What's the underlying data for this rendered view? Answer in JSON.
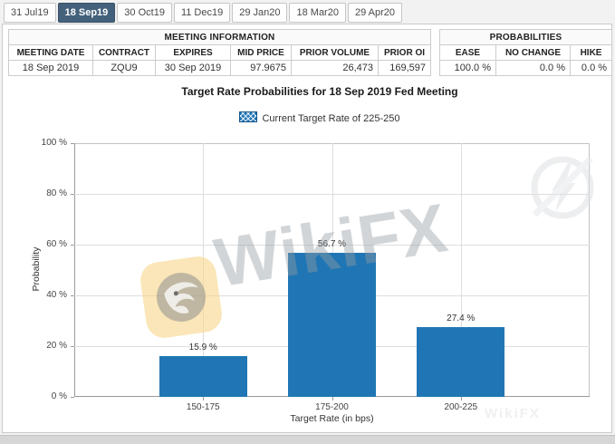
{
  "tabs": [
    {
      "label": "31 Jul19",
      "selected": false
    },
    {
      "label": "18 Sep19",
      "selected": true
    },
    {
      "label": "30 Oct19",
      "selected": false
    },
    {
      "label": "11 Dec19",
      "selected": false
    },
    {
      "label": "29 Jan20",
      "selected": false
    },
    {
      "label": "18 Mar20",
      "selected": false
    },
    {
      "label": "29 Apr20",
      "selected": false
    }
  ],
  "meeting_information": {
    "title": "MEETING INFORMATION",
    "columns": [
      "MEETING DATE",
      "CONTRACT",
      "EXPIRES",
      "MID PRICE",
      "PRIOR VOLUME",
      "PRIOR OI"
    ],
    "values": [
      "18 Sep 2019",
      "ZQU9",
      "30 Sep 2019",
      "97.9675",
      "26,473",
      "169,597"
    ]
  },
  "probabilities": {
    "title": "PROBABILITIES",
    "columns": [
      "EASE",
      "NO CHANGE",
      "HIKE"
    ],
    "values": [
      "100.0 %",
      "0.0 %",
      "0.0 %"
    ]
  },
  "chart_data": {
    "type": "bar",
    "title": "Target Rate Probabilities for 18 Sep 2019 Fed Meeting",
    "legend": "Current Target Rate of 225-250",
    "categories": [
      "150-175",
      "175-200",
      "200-225"
    ],
    "values": [
      15.9,
      56.7,
      27.4
    ],
    "value_labels": [
      "15.9 %",
      "56.7 %",
      "27.4 %"
    ],
    "xlabel": "Target Rate (in bps)",
    "ylabel": "Probability",
    "ylim": [
      0,
      100
    ],
    "yticks": [
      "0 %",
      "20 %",
      "40 %",
      "60 %",
      "80 %",
      "100 %"
    ],
    "ytick_values": [
      0,
      20,
      40,
      60,
      80,
      100
    ],
    "grid": true,
    "legend_position": "top",
    "bar_color": "#2076b4"
  },
  "watermark": {
    "text": "WikiFX"
  },
  "colors": {
    "selected_tab": "#44617c",
    "bar": "#2076b4",
    "accent_border": "#c9c9c9"
  }
}
